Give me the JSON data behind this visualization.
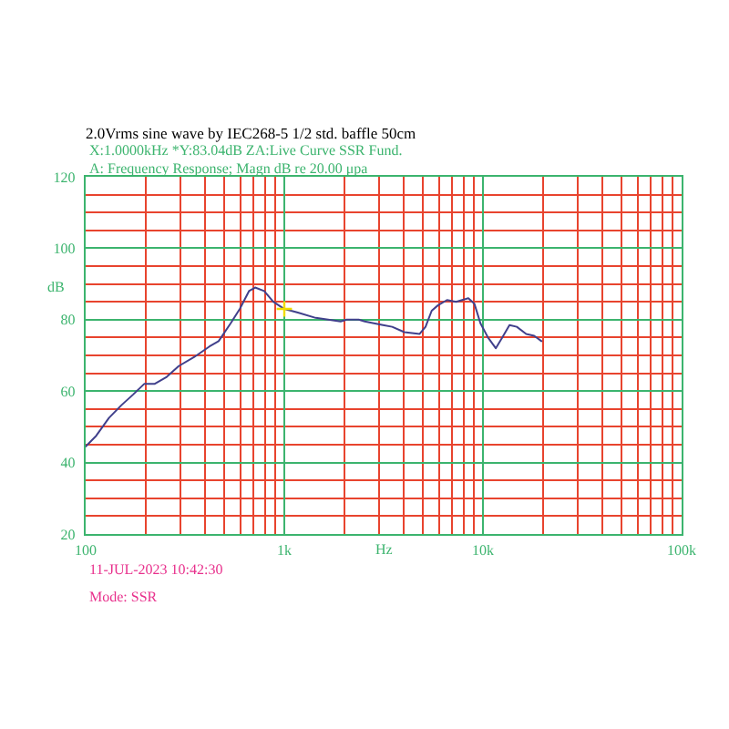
{
  "chart_data": {
    "type": "line",
    "title": "2.0Vrms sine wave by IEC268-5 1/2 std. baffle 50cm",
    "subtitle": "X:1.0000kHz *Y:83.04dB ZA:Live Curve SSR Fund.",
    "annotations": [
      "A: Frequency Response; Magn dB re 20.00 μpa",
      "11-JUL-2023 10:42:30",
      "Mode: SSR"
    ],
    "xlabel": "Hz",
    "ylabel": "dB",
    "log": "x",
    "grid": true,
    "xlim": [
      100,
      100000
    ],
    "ylim": [
      20,
      120
    ],
    "xticks": [
      100,
      {
        "value": 200,
        "label": null
      },
      {
        "value": 300,
        "label": null
      },
      {
        "value": 400,
        "label": null
      },
      {
        "value": 500,
        "label": null
      },
      {
        "value": 600,
        "label": null
      },
      {
        "value": 700,
        "label": null
      },
      {
        "value": 800,
        "label": null
      },
      {
        "value": 900,
        "label": null
      },
      {
        "value": 1000,
        "label": "1k"
      },
      {
        "value": 2000,
        "label": null
      },
      {
        "value": 3000,
        "label": null
      },
      {
        "value": 4000,
        "label": null
      },
      {
        "value": 5000,
        "label": null
      },
      {
        "value": 6000,
        "label": null
      },
      {
        "value": 7000,
        "label": null
      },
      {
        "value": 8000,
        "label": null
      },
      {
        "value": 9000,
        "label": null
      },
      {
        "value": 10000,
        "label": "10k"
      },
      {
        "value": 20000,
        "label": null
      },
      {
        "value": 30000,
        "label": null
      },
      {
        "value": 40000,
        "label": null
      },
      {
        "value": 50000,
        "label": null
      },
      {
        "value": 60000,
        "label": null
      },
      {
        "value": 70000,
        "label": null
      },
      {
        "value": 80000,
        "label": null
      },
      {
        "value": 90000,
        "label": null
      },
      {
        "value": 100000,
        "label": "100k"
      }
    ],
    "yticks": [
      20,
      {
        "value": 25,
        "label": null
      },
      {
        "value": 30,
        "label": null
      },
      {
        "value": 35,
        "label": null
      },
      40,
      {
        "value": 45,
        "label": null
      },
      {
        "value": 50,
        "label": null
      },
      {
        "value": 55,
        "label": null
      },
      60,
      {
        "value": 65,
        "label": null
      },
      {
        "value": 70,
        "label": null
      },
      {
        "value": 75,
        "label": null
      },
      80,
      {
        "value": 85,
        "label": null
      },
      {
        "value": 90,
        "label": null
      },
      {
        "value": 95,
        "label": null
      },
      100,
      {
        "value": 105,
        "label": null
      },
      {
        "value": 110,
        "label": null
      },
      {
        "value": 115,
        "label": null
      },
      120
    ],
    "series": [
      {
        "color": "#40408c",
        "x": [
          100,
          113,
          131,
          151,
          173,
          197,
          222,
          256,
          294,
          351,
          420,
          467,
          537,
          597,
          664,
          713,
          792,
          880,
          1000,
          1170,
          1440,
          1920,
          2060,
          2370,
          2540,
          3140,
          3490,
          4020,
          4800,
          5140,
          5520,
          5930,
          6590,
          7320,
          7860,
          8440,
          9050,
          9710,
          10600,
          11600,
          12500,
          13600,
          14800,
          16500,
          18100,
          19700
        ],
        "values": [
          44.5,
          47.5,
          52.5,
          56,
          59,
          62,
          62,
          64,
          67,
          69.5,
          72.5,
          74,
          79,
          83,
          88,
          89,
          88,
          85,
          83,
          82,
          80.5,
          79.5,
          80,
          80,
          79.5,
          78.5,
          78,
          76.5,
          76,
          78,
          82.5,
          84,
          85.5,
          85,
          85.5,
          86,
          84.5,
          79,
          75,
          72,
          75,
          78.5,
          78,
          76,
          75.5,
          74
        ]
      },
      {
        "type": "scatter",
        "color": "#f0dc00",
        "marker": "cross",
        "x": [
          1000
        ],
        "values": [
          83
        ]
      }
    ]
  }
}
